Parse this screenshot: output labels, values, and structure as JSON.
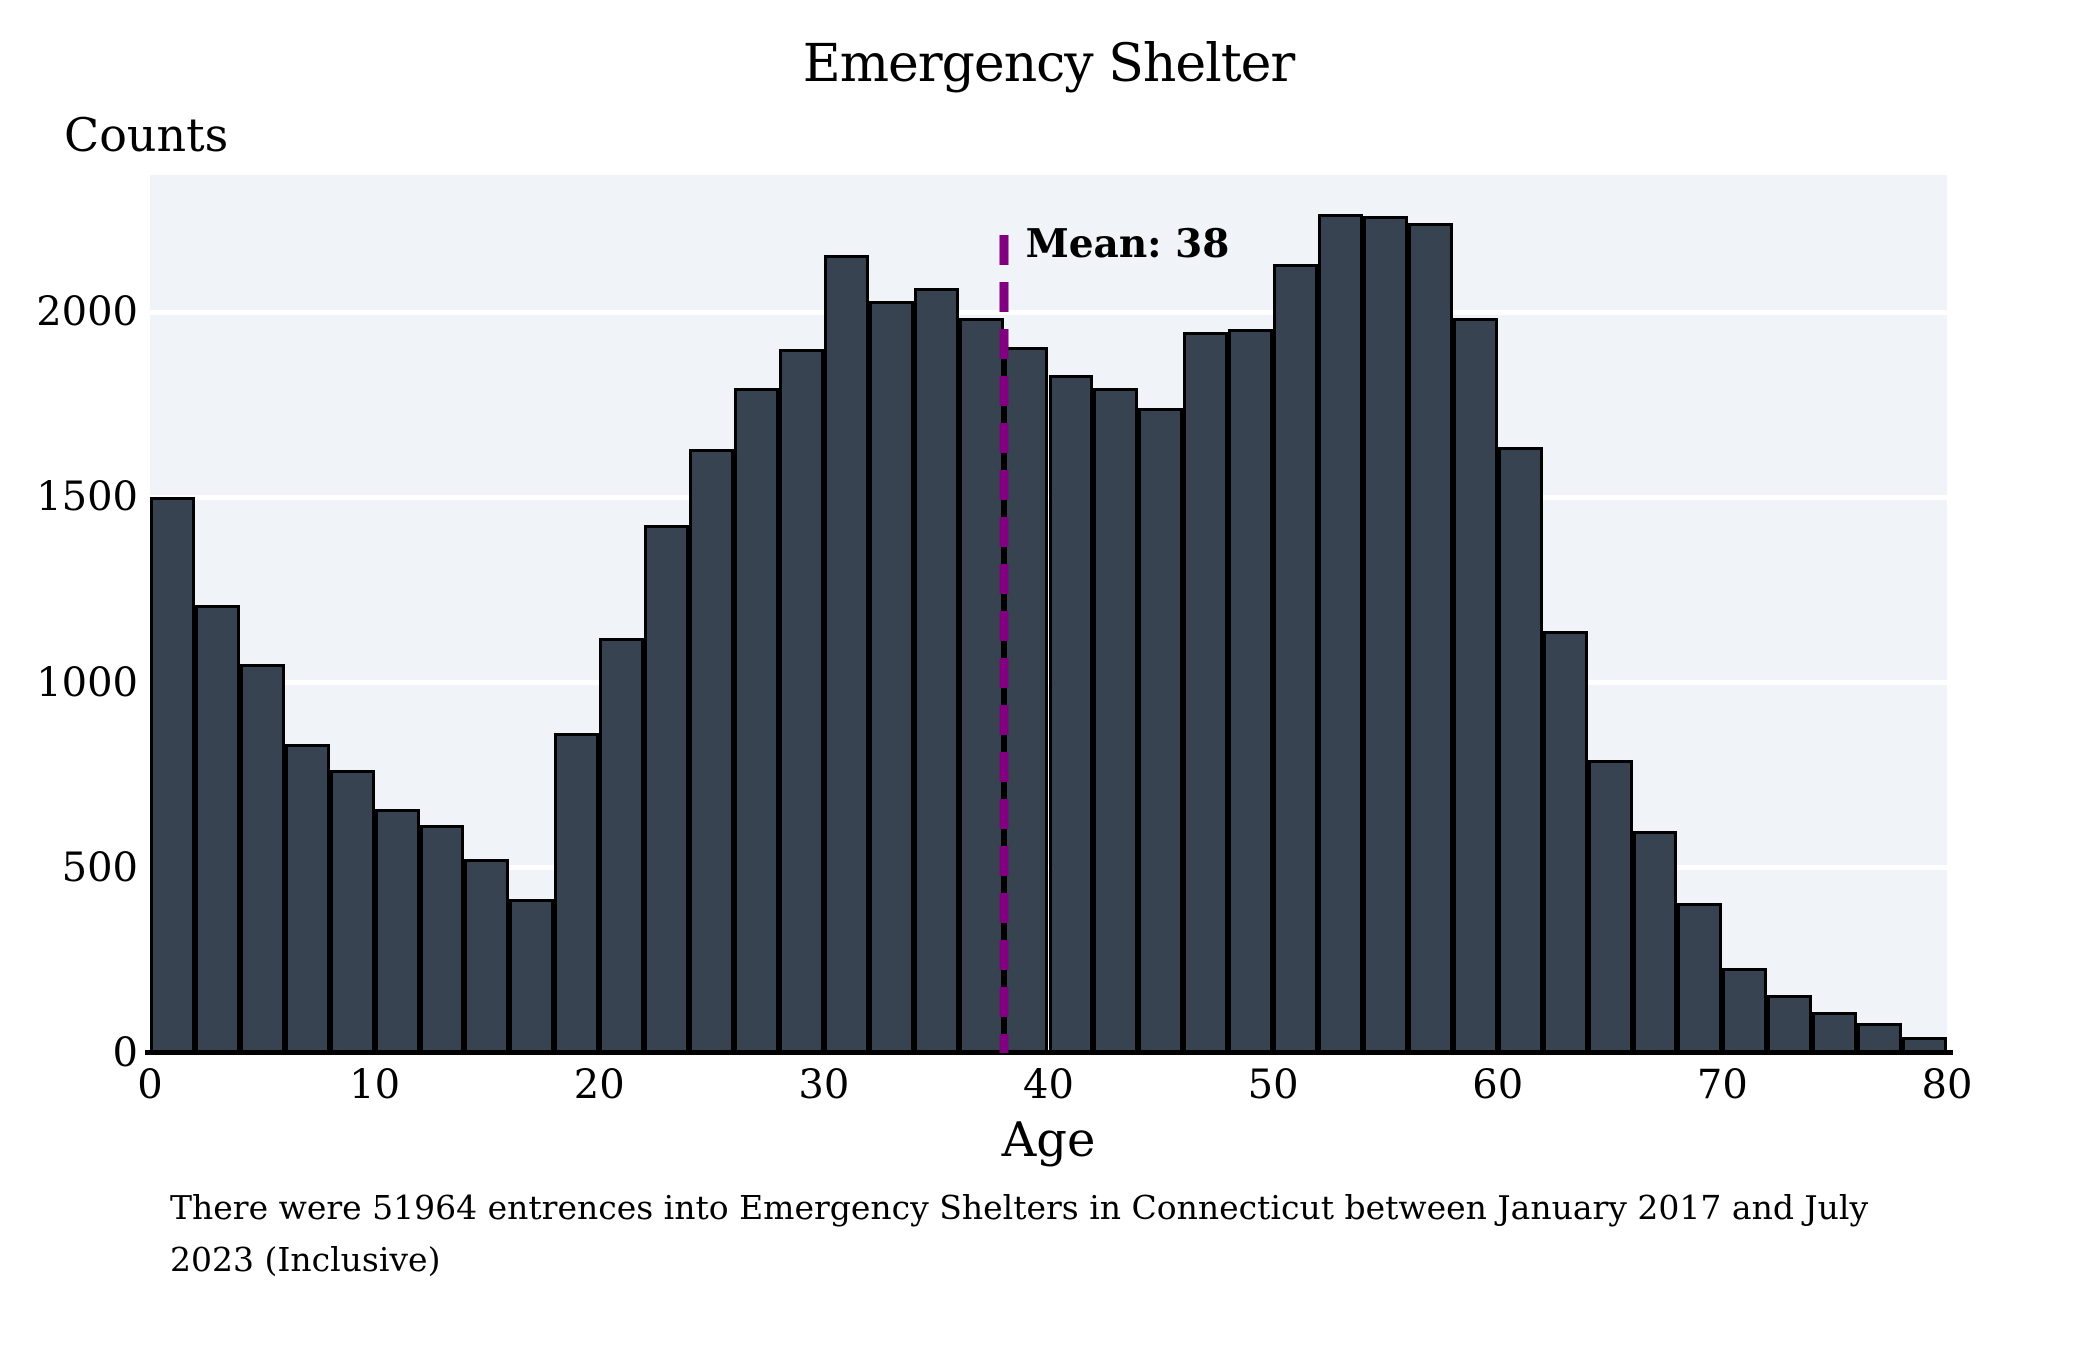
{
  "title": "Emergency Shelter",
  "axes": {
    "y_label": "Counts",
    "x_label": "Age"
  },
  "mean_annotation": {
    "label": "Mean: 38",
    "age": 38
  },
  "caption": {
    "lines": [
      "There were 51964 entrences into Emergency Shelters in Connecticut between January 2017 and July",
      "2023 (Inclusive)"
    ]
  },
  "colors": {
    "bar_fill": "#374350",
    "bar_edge": "#000000",
    "plot_background": "#F0F3F7",
    "gridline": "#FFFFFF",
    "axis_line": "#000000",
    "mean_line": "#800080",
    "text": "#000000",
    "figure_background": "#FFFFFF"
  },
  "chart_data": {
    "type": "bar",
    "subtype": "histogram",
    "title": "Emergency Shelter",
    "xlabel": "Age",
    "ylabel": "Counts",
    "bin_width": 2,
    "bin_starts": [
      0,
      2,
      4,
      6,
      8,
      10,
      12,
      14,
      16,
      18,
      20,
      22,
      24,
      26,
      28,
      30,
      32,
      34,
      36,
      38,
      40,
      42,
      44,
      46,
      48,
      50,
      52,
      54,
      56,
      58,
      60,
      62,
      64,
      66,
      68,
      70,
      72,
      74,
      76,
      78
    ],
    "values": [
      1500,
      1210,
      1050,
      835,
      765,
      660,
      615,
      525,
      415,
      865,
      1120,
      1425,
      1630,
      1795,
      1900,
      2155,
      2030,
      2065,
      1985,
      1905,
      1830,
      1795,
      1740,
      1945,
      1955,
      2130,
      2265,
      2260,
      2240,
      1985,
      1635,
      1140,
      790,
      600,
      405,
      230,
      157,
      111,
      82,
      42
    ],
    "x_ticks": [
      0,
      10,
      20,
      30,
      40,
      50,
      60,
      70,
      80
    ],
    "y_ticks": [
      0,
      500,
      1000,
      1500,
      2000
    ],
    "xlim": [
      0,
      80
    ],
    "ylim": [
      0,
      2370
    ],
    "grid": {
      "horizontal": true,
      "vertical": false,
      "color": "#FFFFFF"
    },
    "legend": "none",
    "mean_line": {
      "x": 38,
      "label": "Mean: 38",
      "style": "dashed",
      "color": "#800080"
    }
  }
}
